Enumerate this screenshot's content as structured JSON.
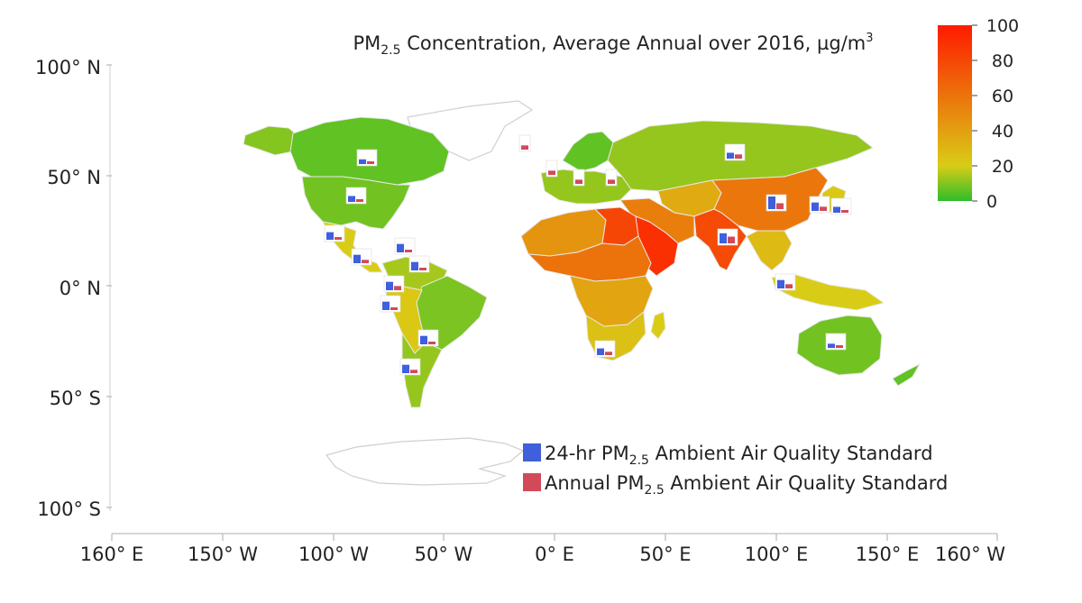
{
  "title": {
    "prefix": "PM",
    "subscript": "2.5",
    "rest": " Concentration, Average Annual over 2016, µg/m",
    "superscript": "3"
  },
  "axes": {
    "y_ticks": [
      "100° N",
      "50° N",
      "0° N",
      "50° S",
      "100° S"
    ],
    "x_ticks": [
      "160° E",
      "150° W",
      "100° W",
      "50° W",
      "0° E",
      "50° E",
      "100° E",
      "150° E",
      "160° W"
    ]
  },
  "colorbar": {
    "ticks": [
      "100",
      "80",
      "60",
      "40",
      "20",
      "0"
    ],
    "range": [
      0,
      100
    ],
    "colors": [
      "#2ebd2a",
      "#d9cc16",
      "#ff1a00"
    ]
  },
  "legend": {
    "items": [
      {
        "prefix": "24-hr PM",
        "sub": "2.5",
        "suffix": " Ambient Air Quality Standard",
        "color": "#3f5fdc"
      },
      {
        "prefix": "Annual PM",
        "sub": "2.5",
        "suffix": " Ambient Air Quality Standard",
        "color": "#d24a5a"
      }
    ]
  },
  "regions": [
    {
      "name": "alaska",
      "value": 10
    },
    {
      "name": "canada",
      "value": 6
    },
    {
      "name": "usa",
      "value": 8
    },
    {
      "name": "mexico",
      "value": 20
    },
    {
      "name": "greenland",
      "value": null
    },
    {
      "name": "northern-south-america",
      "value": 14
    },
    {
      "name": "brazil",
      "value": 9
    },
    {
      "name": "andes-bolivia",
      "value": 22
    },
    {
      "name": "southern-cone",
      "value": 12
    },
    {
      "name": "western-europe",
      "value": 12
    },
    {
      "name": "scandinavia",
      "value": 6
    },
    {
      "name": "russia",
      "value": 12
    },
    {
      "name": "north-africa",
      "value": 45
    },
    {
      "name": "sahel",
      "value": 60
    },
    {
      "name": "central-africa",
      "value": 38
    },
    {
      "name": "southern-africa",
      "value": 25
    },
    {
      "name": "egypt-libya",
      "value": 80
    },
    {
      "name": "arabia",
      "value": 90
    },
    {
      "name": "middle-east",
      "value": 55
    },
    {
      "name": "central-asia",
      "value": 35
    },
    {
      "name": "china",
      "value": 58
    },
    {
      "name": "india",
      "value": 78
    },
    {
      "name": "southeast-asia",
      "value": 28
    },
    {
      "name": "indonesia",
      "value": 20
    },
    {
      "name": "australia",
      "value": 8
    },
    {
      "name": "new-zealand",
      "value": 6
    },
    {
      "name": "japan-korea",
      "value": 22
    },
    {
      "name": "madagascar",
      "value": 20
    }
  ],
  "standards_markers": [
    {
      "id": "canada",
      "a24": 28,
      "annual": 10
    },
    {
      "id": "usa",
      "a24": 35,
      "annual": 12
    },
    {
      "id": "mexico",
      "a24": 45,
      "annual": 12
    },
    {
      "id": "cuba",
      "a24": 50,
      "annual": 15
    },
    {
      "id": "guatemala",
      "a24": 50,
      "annual": 20
    },
    {
      "id": "venezuela",
      "a24": 50,
      "annual": 15
    },
    {
      "id": "colombia",
      "a24": 50,
      "annual": 25
    },
    {
      "id": "peru",
      "a24": 50,
      "annual": 15
    },
    {
      "id": "bolivia",
      "a24": 50,
      "annual": 15
    },
    {
      "id": "chile",
      "a24": 50,
      "annual": 20
    },
    {
      "id": "uk",
      "a24": null,
      "annual": 25
    },
    {
      "id": "ireland",
      "a24": null,
      "annual": 25
    },
    {
      "id": "europe-1",
      "a24": null,
      "annual": 25
    },
    {
      "id": "europe-2",
      "a24": null,
      "annual": 25
    },
    {
      "id": "russia",
      "a24": 35,
      "annual": 25
    },
    {
      "id": "china",
      "a24": 75,
      "annual": 35
    },
    {
      "id": "korea",
      "a24": 50,
      "annual": 25
    },
    {
      "id": "japan",
      "a24": 35,
      "annual": 15
    },
    {
      "id": "india",
      "a24": 60,
      "annual": 40
    },
    {
      "id": "thailand",
      "a24": 50,
      "annual": 25
    },
    {
      "id": "south-africa",
      "a24": 40,
      "annual": 20
    },
    {
      "id": "australia",
      "a24": 25,
      "annual": 8
    }
  ]
}
